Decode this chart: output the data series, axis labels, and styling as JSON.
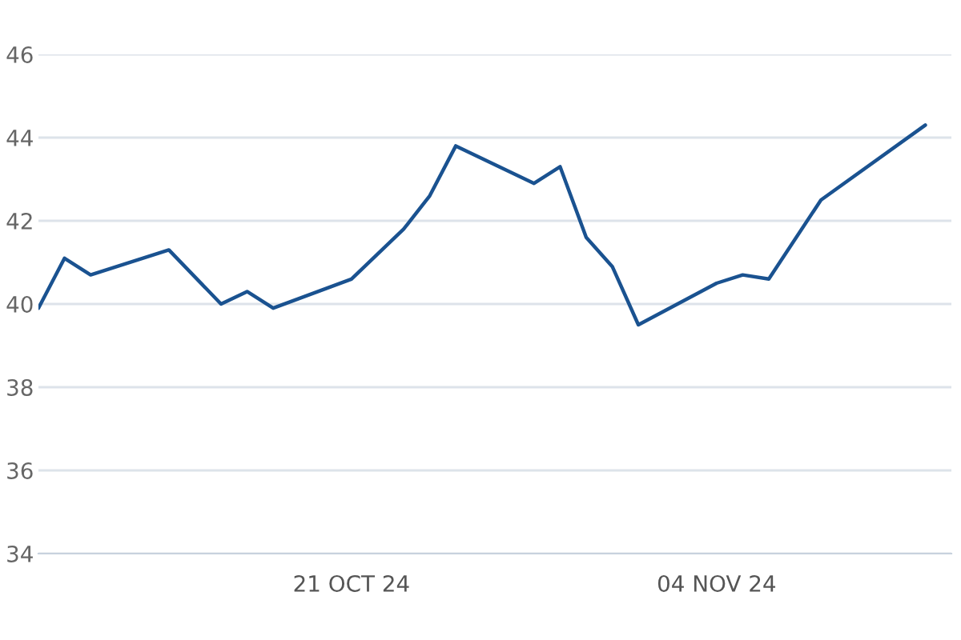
{
  "chart_data": {
    "type": "line",
    "x": [
      "2024-10-09",
      "2024-10-10",
      "2024-10-11",
      "2024-10-14",
      "2024-10-16",
      "2024-10-17",
      "2024-10-18",
      "2024-10-21",
      "2024-10-22",
      "2024-10-23",
      "2024-10-24",
      "2024-10-25",
      "2024-10-28",
      "2024-10-29",
      "2024-10-30",
      "2024-10-31",
      "2024-11-01",
      "2024-11-04",
      "2024-11-05",
      "2024-11-06",
      "2024-11-08",
      "2024-11-12"
    ],
    "series": [
      {
        "color": "#1a5290",
        "values": [
          39.9,
          41.1,
          40.7,
          41.3,
          40.0,
          40.3,
          39.9,
          40.6,
          41.2,
          41.8,
          42.6,
          43.8,
          42.9,
          43.3,
          41.6,
          40.9,
          39.5,
          40.5,
          40.7,
          40.6,
          42.5,
          44.3
        ]
      }
    ],
    "xlim": [
      "2024-10-09",
      "2024-11-13"
    ],
    "xticks": [
      {
        "value": "2024-10-21",
        "label": "21 OCT 24"
      },
      {
        "value": "2024-11-04",
        "label": "04 NOV 24"
      }
    ],
    "ylim": [
      34,
      46
    ],
    "yticks": [
      34,
      36,
      38,
      40,
      42,
      44,
      46
    ],
    "grid": "y",
    "marker": "none",
    "line_style": "solid"
  }
}
